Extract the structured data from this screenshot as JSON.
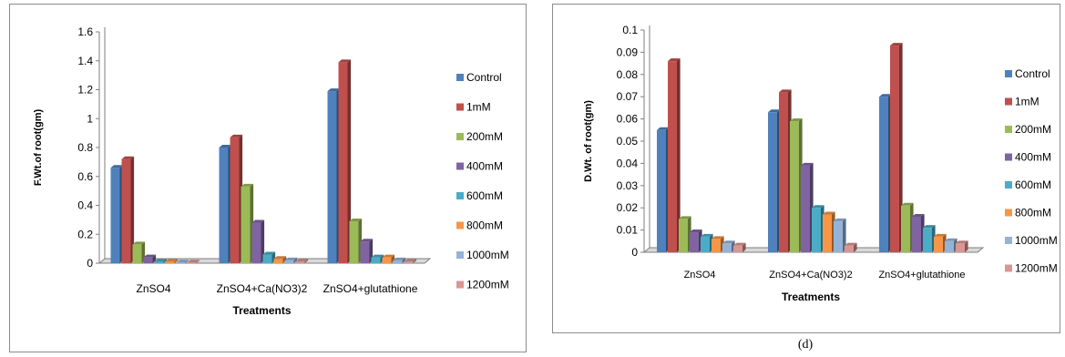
{
  "colors": {
    "series": [
      "#4F81BD",
      "#C0504D",
      "#9BBB59",
      "#8064A2",
      "#4BACC6",
      "#F79646",
      "#95B3D7",
      "#D99694"
    ],
    "axis": "#7f7f7f",
    "floor": "#d9d9d9"
  },
  "figure_caption": "(d)",
  "chart_data": [
    {
      "type": "bar",
      "view": "3d-clustered",
      "categories": [
        "ZnSO4",
        "ZnSO4+Ca(NO3)2",
        "ZnSO4+glutathione"
      ],
      "xlabel": "Treatments",
      "ylabel": "F.Wt.of root(gm)",
      "ylim": [
        0,
        1.6
      ],
      "yticks": [
        "0",
        "0.2",
        "0.4",
        "0.6",
        "0.8",
        "1",
        "1.2",
        "1.4",
        "1.6"
      ],
      "legend_position": "right",
      "grid": false,
      "series": [
        {
          "name": "Control",
          "values": [
            0.66,
            0.8,
            1.19
          ]
        },
        {
          "name": "1mM",
          "values": [
            0.72,
            0.87,
            1.39
          ]
        },
        {
          "name": "200mM",
          "values": [
            0.13,
            0.53,
            0.29
          ]
        },
        {
          "name": "400mM",
          "values": [
            0.04,
            0.28,
            0.15
          ]
        },
        {
          "name": "600mM",
          "values": [
            0.01,
            0.06,
            0.04
          ]
        },
        {
          "name": "800mM",
          "values": [
            0.01,
            0.03,
            0.04
          ]
        },
        {
          "name": "1000mM",
          "values": [
            0.005,
            0.02,
            0.02
          ]
        },
        {
          "name": "1200mM",
          "values": [
            0.005,
            0.01,
            0.01
          ]
        }
      ]
    },
    {
      "type": "bar",
      "view": "3d-clustered",
      "categories": [
        "ZnSO4",
        "ZnSO4+Ca(NO3)2",
        "ZnSO4+glutathione"
      ],
      "xlabel": "Treatments",
      "ylabel": "D.Wt. of root(gm)",
      "ylim": [
        0,
        0.1
      ],
      "yticks": [
        "0",
        "0.01",
        "0.02",
        "0.03",
        "0.04",
        "0.05",
        "0.06",
        "0.07",
        "0.08",
        "0.09",
        "0.1"
      ],
      "legend_position": "right",
      "grid": false,
      "series": [
        {
          "name": "Control",
          "values": [
            0.055,
            0.063,
            0.07
          ]
        },
        {
          "name": "1mM",
          "values": [
            0.086,
            0.072,
            0.093
          ]
        },
        {
          "name": "200mM",
          "values": [
            0.015,
            0.059,
            0.021
          ]
        },
        {
          "name": "400mM",
          "values": [
            0.009,
            0.039,
            0.016
          ]
        },
        {
          "name": "600mM",
          "values": [
            0.007,
            0.02,
            0.011
          ]
        },
        {
          "name": "800mM",
          "values": [
            0.006,
            0.017,
            0.007
          ]
        },
        {
          "name": "1000mM",
          "values": [
            0.004,
            0.014,
            0.005
          ]
        },
        {
          "name": "1200mM",
          "values": [
            0.003,
            0.003,
            0.004
          ]
        }
      ]
    }
  ]
}
